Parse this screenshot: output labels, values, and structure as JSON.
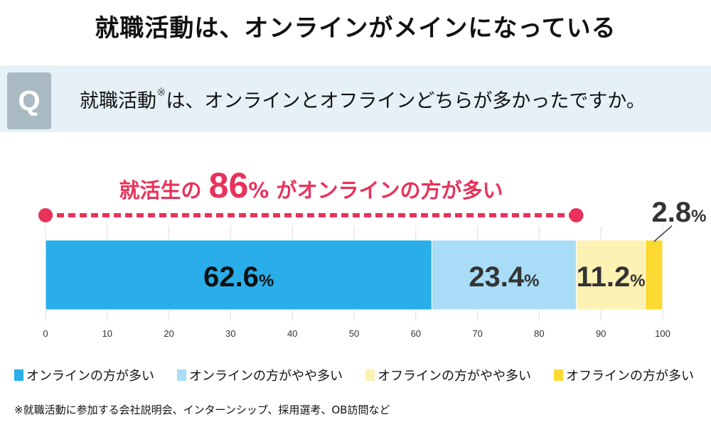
{
  "title": "就職活動は、オンラインがメインになっている",
  "question": {
    "badge": "Q",
    "text": "就職活動",
    "mark": "※",
    "text2": "は、オンラインとオフラインどちらが多かったですか。"
  },
  "headline": {
    "pre": "就活生の",
    "value": "86",
    "unit": "%",
    "post": "がオンラインの方が多い"
  },
  "chart_data": {
    "type": "bar",
    "orientation": "horizontal-stacked",
    "xlim": [
      0,
      100
    ],
    "xticks": [
      0,
      10,
      20,
      30,
      40,
      50,
      60,
      70,
      80,
      90,
      100
    ],
    "grid": true,
    "legend_position": "bottom",
    "series": [
      {
        "name": "オンラインの方が多い",
        "value": 62.6,
        "label": "62.6",
        "color": "#29aeea"
      },
      {
        "name": "オンラインの方がやや多い",
        "value": 23.4,
        "label": "23.4",
        "color": "#a9dcf7"
      },
      {
        "name": "オフラインの方がやや多い",
        "value": 11.2,
        "label": "11.2",
        "color": "#fdf1b4"
      },
      {
        "name": "オフラインの方が多い",
        "value": 2.8,
        "label": "2.8",
        "color": "#fcd832"
      }
    ],
    "unit": "%",
    "bracket": {
      "from": 0,
      "to": 86,
      "color": "#e8325a"
    }
  },
  "note": "※就職活動に参加する会社説明会、インターンシップ、採用選考、OB訪問など"
}
